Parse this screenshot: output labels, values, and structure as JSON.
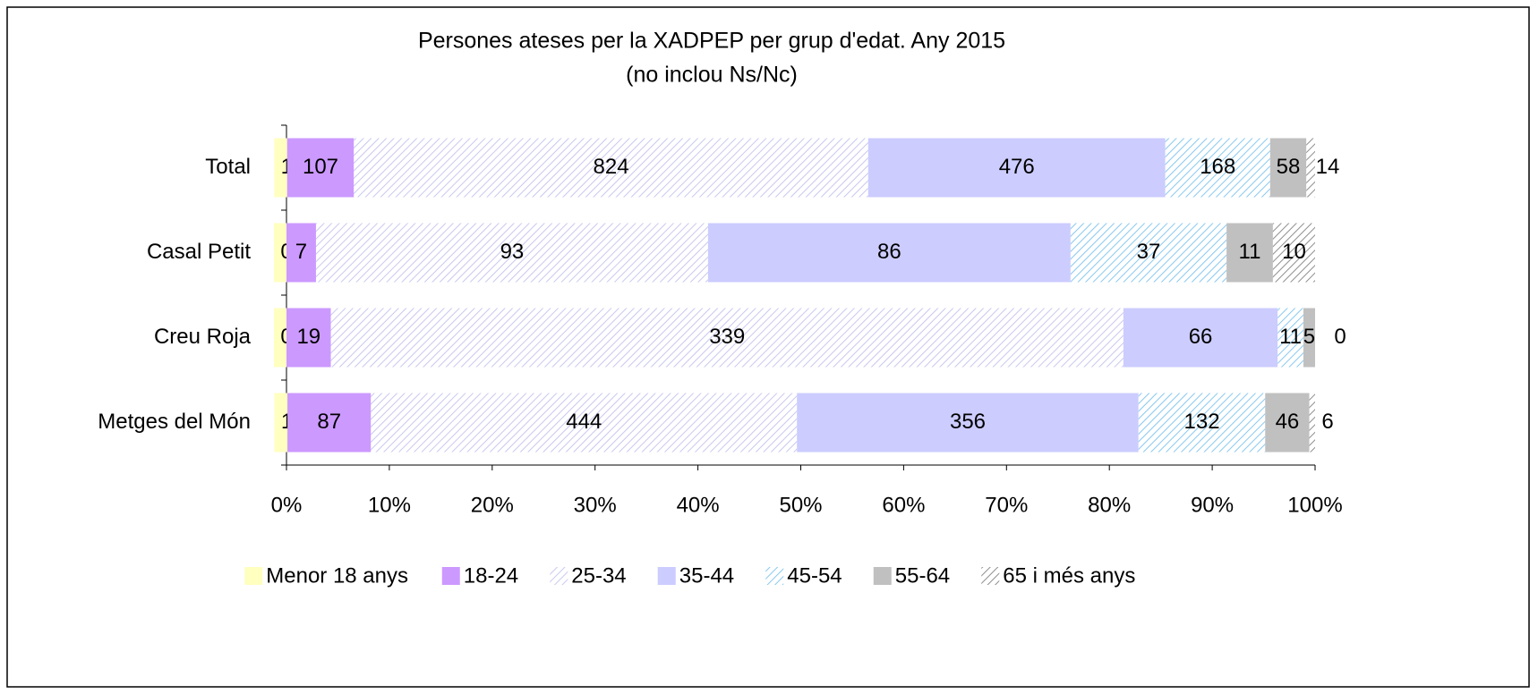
{
  "chart_data": {
    "type": "bar",
    "orientation": "horizontal",
    "stacking": "percent",
    "title": "Persones ateses per la XADPEP per grup d'edat. Any 2015",
    "subtitle": "(no inclou Ns/Nc)",
    "categories": [
      "Total",
      "Casal Petit",
      "Creu Roja",
      "Metges del Món"
    ],
    "series": [
      {
        "name": "Menor 18 anys",
        "color": "#ffffc0",
        "hatch": false,
        "values": [
          1,
          0,
          0,
          1
        ]
      },
      {
        "name": "18-24",
        "color": "#cc99ff",
        "hatch": false,
        "values": [
          107,
          7,
          19,
          87
        ]
      },
      {
        "name": "25-34",
        "color": "#c8c8f0",
        "hatch": true,
        "values": [
          824,
          93,
          339,
          444
        ]
      },
      {
        "name": "35-44",
        "color": "#ccccff",
        "hatch": false,
        "values": [
          476,
          86,
          66,
          356
        ]
      },
      {
        "name": "45-54",
        "color": "#88c8f0",
        "hatch": true,
        "values": [
          168,
          37,
          11,
          132
        ]
      },
      {
        "name": "55-64",
        "color": "#c0c0c0",
        "hatch": false,
        "values": [
          58,
          11,
          5,
          46
        ]
      },
      {
        "name": "65 i més anys",
        "color": "#909090",
        "hatch": true,
        "values": [
          14,
          10,
          0,
          6
        ]
      }
    ],
    "xlim": [
      0,
      100
    ],
    "xticks": [
      {
        "value": 0,
        "label": "0%"
      },
      {
        "value": 10,
        "label": "10%"
      },
      {
        "value": 20,
        "label": "20%"
      },
      {
        "value": 30,
        "label": "30%"
      },
      {
        "value": 40,
        "label": "40%"
      },
      {
        "value": 50,
        "label": "50%"
      },
      {
        "value": 60,
        "label": "60%"
      },
      {
        "value": 70,
        "label": "70%"
      },
      {
        "value": 80,
        "label": "80%"
      },
      {
        "value": 90,
        "label": "90%"
      },
      {
        "value": 100,
        "label": "100%"
      }
    ],
    "legend": "bottom"
  }
}
